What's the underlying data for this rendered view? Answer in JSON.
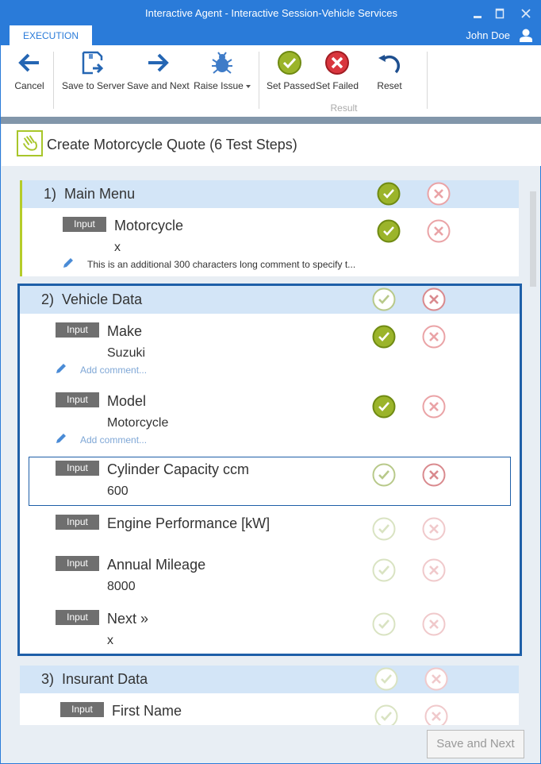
{
  "window": {
    "title": "Interactive Agent - Interactive Session-Vehicle Services"
  },
  "tab": "EXECUTION",
  "user": "John Doe",
  "ribbon": {
    "cancel": "Cancel",
    "save_server": "Save to Server",
    "save_next": "Save and Next",
    "raise_issue": "Raise Issue",
    "set_passed": "Set Passed",
    "set_failed": "Set Failed",
    "reset": "Reset",
    "group_result": "Result"
  },
  "testcase": {
    "title": "Create Motorcycle Quote (6 Test Steps)"
  },
  "sections": [
    {
      "number": "1)",
      "title": "Main Menu",
      "pass": "solid",
      "fail": "faded",
      "rows": [
        {
          "badge": "Input",
          "title": "Motorcycle",
          "value": "x",
          "comment": "This is an additional 300 characters long comment to specify t...",
          "pass": "solid",
          "fail": "faded"
        }
      ]
    },
    {
      "number": "2)",
      "title": "Vehicle Data",
      "pass": "outline",
      "fail": "outline",
      "rows": [
        {
          "badge": "Input",
          "title": "Make",
          "value": "Suzuki",
          "comment": "Add comment...",
          "pass": "solid",
          "fail": "faded"
        },
        {
          "badge": "Input",
          "title": "Model",
          "value": "Motorcycle",
          "comment": "Add comment...",
          "pass": "solid",
          "fail": "faded"
        },
        {
          "badge": "Input",
          "title": "Cylinder Capacity ccm",
          "value": "600",
          "pass": "outline",
          "fail": "outline",
          "selected": true
        },
        {
          "badge": "Input",
          "title": "Engine Performance [kW]",
          "value": "",
          "pass": "faint",
          "fail": "faint"
        },
        {
          "badge": "Input",
          "title": "Annual Mileage",
          "value": "8000",
          "pass": "faint",
          "fail": "faint"
        },
        {
          "badge": "Input",
          "title": "Next »",
          "value": "x",
          "pass": "faint",
          "fail": "faint"
        }
      ]
    },
    {
      "number": "3)",
      "title": "Insurant Data",
      "pass": "faint",
      "fail": "faint",
      "rows": [
        {
          "badge": "Input",
          "title": "First Name",
          "value": "",
          "pass": "faint",
          "fail": "faint"
        }
      ]
    }
  ],
  "footer": {
    "save_next": "Save and Next"
  },
  "colors": {
    "accent": "#2a7bd9",
    "pass": "#9bb42a",
    "fail": "#d9363e",
    "selection": "#1e5fa8"
  }
}
